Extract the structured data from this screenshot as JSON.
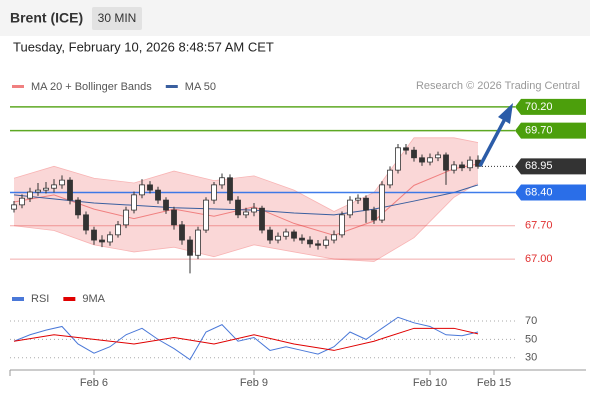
{
  "header": {
    "title": "Brent (ICE)",
    "timeframe": "30 MIN",
    "datetime": "Tuesday, February 10, 2026 8:48:57 AM CET",
    "credit": "Research © 2026 Trading Central"
  },
  "chart_data": [
    {
      "type": "candlestick",
      "legend": [
        {
          "name": "MA 20 + Bollinger Bands",
          "color": "#f08080"
        },
        {
          "name": "MA 50",
          "color": "#3a5f9f"
        }
      ],
      "xlim": [
        0,
        61
      ],
      "xticks": [
        {
          "value": 10,
          "label": "Feb 6"
        },
        {
          "value": 30,
          "label": "Feb 9"
        },
        {
          "value": 52,
          "label": "Feb 10"
        },
        {
          "value": 60,
          "label": "Feb 15"
        }
      ],
      "ylim": [
        66.56,
        70.45
      ],
      "up_color": "#ffffff",
      "down_color": "#333333",
      "open": [
        68.05,
        68.14,
        68.28,
        68.41,
        68.45,
        68.49,
        68.56,
        68.66,
        68.24,
        67.93,
        67.61,
        67.4,
        67.36,
        67.51,
        67.72,
        68.03,
        68.35,
        68.56,
        68.45,
        68.24,
        68.03,
        67.72,
        67.4,
        67.08,
        67.61,
        68.24,
        68.56,
        68.71,
        68.24,
        67.93,
        67.99,
        68.07,
        67.61,
        67.4,
        67.48,
        67.57,
        67.44,
        67.4,
        67.32,
        67.29,
        67.4,
        67.51,
        67.93,
        68.24,
        68.28,
        68.03,
        67.82,
        68.56,
        68.87,
        69.34,
        69.29,
        69.13,
        69.04,
        69.13,
        69.19,
        68.87,
        68.98,
        68.92,
        69.08
      ],
      "high": [
        68.22,
        68.36,
        68.5,
        68.6,
        68.62,
        68.68,
        68.76,
        68.72,
        68.3,
        68.0,
        67.68,
        67.5,
        67.58,
        67.8,
        68.1,
        68.42,
        68.68,
        68.64,
        68.52,
        68.3,
        68.1,
        67.8,
        67.48,
        67.68,
        68.3,
        68.62,
        68.8,
        68.78,
        68.32,
        68.08,
        68.18,
        68.12,
        67.68,
        67.56,
        67.64,
        67.62,
        67.52,
        67.48,
        67.4,
        67.48,
        67.6,
        68.0,
        68.32,
        68.36,
        68.34,
        68.1,
        68.64,
        68.95,
        69.42,
        69.42,
        69.36,
        69.2,
        69.22,
        69.26,
        69.24,
        69.06,
        69.05,
        69.16,
        69.18
      ],
      "low": [
        67.98,
        68.07,
        68.2,
        68.33,
        68.38,
        68.4,
        68.48,
        68.15,
        67.85,
        67.52,
        67.3,
        67.25,
        67.28,
        67.45,
        67.65,
        67.96,
        68.28,
        68.38,
        68.16,
        67.95,
        67.62,
        67.3,
        66.7,
        67.0,
        67.55,
        68.16,
        68.48,
        68.16,
        67.86,
        67.86,
        67.9,
        67.54,
        67.32,
        67.33,
        67.41,
        67.37,
        67.32,
        67.24,
        67.2,
        67.22,
        67.33,
        67.45,
        67.86,
        68.16,
        67.76,
        67.74,
        67.76,
        68.49,
        68.8,
        69.2,
        69.05,
        68.96,
        68.97,
        69.06,
        68.56,
        68.8,
        68.85,
        68.85,
        68.9
      ],
      "close": [
        68.14,
        68.28,
        68.41,
        68.45,
        68.49,
        68.56,
        68.66,
        68.24,
        67.93,
        67.61,
        67.4,
        67.36,
        67.51,
        67.72,
        68.03,
        68.35,
        68.56,
        68.45,
        68.24,
        68.03,
        67.72,
        67.4,
        67.08,
        67.61,
        68.24,
        68.56,
        68.71,
        68.24,
        67.93,
        67.99,
        68.07,
        67.61,
        67.4,
        67.48,
        67.57,
        67.44,
        67.4,
        67.32,
        67.29,
        67.4,
        67.51,
        67.93,
        68.24,
        68.28,
        68.03,
        67.82,
        68.56,
        68.87,
        69.34,
        69.29,
        69.13,
        69.04,
        69.13,
        69.19,
        68.87,
        68.98,
        68.92,
        69.08,
        68.95
      ],
      "bands": {
        "x": [
          0,
          5,
          10,
          15,
          20,
          25,
          30,
          35,
          40,
          45,
          50,
          55,
          58
        ],
        "upper": [
          68.7,
          68.95,
          68.7,
          68.6,
          68.85,
          68.65,
          68.75,
          68.45,
          68.0,
          68.4,
          69.55,
          69.55,
          69.45
        ],
        "lower": [
          67.7,
          67.6,
          67.3,
          67.15,
          67.25,
          67.05,
          67.3,
          67.15,
          67.0,
          66.95,
          67.45,
          68.3,
          68.6
        ],
        "ma20": [
          68.2,
          68.35,
          68.05,
          67.85,
          68.05,
          67.9,
          68.1,
          67.75,
          67.5,
          67.8,
          68.55,
          68.9,
          69.0
        ]
      },
      "ma50": {
        "x": [
          0,
          10,
          20,
          30,
          35,
          40,
          45,
          50,
          55,
          58
        ],
        "values": [
          68.35,
          68.18,
          68.08,
          68.03,
          67.97,
          67.93,
          68.05,
          68.22,
          68.4,
          68.56
        ]
      },
      "levels": [
        {
          "value": 70.2,
          "label": "70.20",
          "color": "#4c9f0c",
          "box": true
        },
        {
          "value": 69.7,
          "label": "69.70",
          "color": "#4c9f0c",
          "box": true
        },
        {
          "value": 68.95,
          "label": "68.95",
          "color": "#333333",
          "box": true,
          "dotted": true
        },
        {
          "value": 68.4,
          "label": "68.40",
          "color": "#2a6ee8",
          "box": true
        },
        {
          "value": 67.7,
          "label": "67.70",
          "color": "#e03030",
          "box": false
        },
        {
          "value": 67.0,
          "label": "67.00",
          "color": "#e03030",
          "box": false
        }
      ]
    },
    {
      "type": "line",
      "series": [
        {
          "name": "RSI",
          "color": "#4a78d8",
          "x": [
            0,
            2,
            4,
            6,
            8,
            10,
            12,
            14,
            16,
            18,
            20,
            22,
            24,
            26,
            28,
            30,
            32,
            34,
            36,
            38,
            40,
            42,
            44,
            46,
            48,
            50,
            52,
            54,
            56,
            58
          ],
          "values": [
            48,
            55,
            60,
            64,
            45,
            35,
            42,
            55,
            62,
            50,
            40,
            28,
            58,
            66,
            48,
            52,
            38,
            42,
            38,
            34,
            42,
            58,
            50,
            62,
            74,
            68,
            64,
            55,
            54,
            58
          ]
        },
        {
          "name": "9MA",
          "color": "#e00000",
          "x": [
            0,
            5,
            10,
            15,
            20,
            25,
            30,
            35,
            40,
            45,
            50,
            55,
            58
          ],
          "values": [
            48,
            55,
            50,
            45,
            52,
            45,
            55,
            45,
            38,
            48,
            62,
            62,
            56
          ]
        }
      ],
      "xlim": [
        0,
        61
      ],
      "ylim": [
        20,
        80
      ],
      "yticks": [
        30,
        50,
        70
      ]
    }
  ]
}
